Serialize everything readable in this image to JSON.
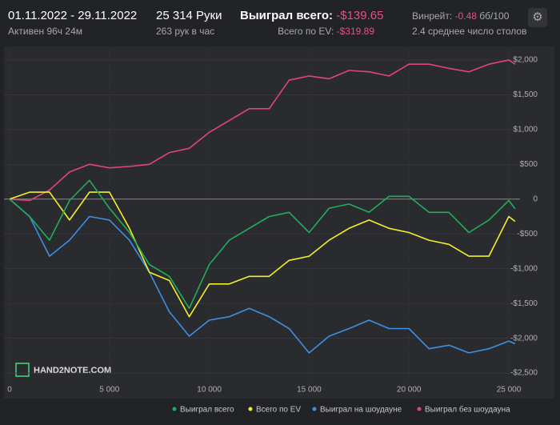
{
  "header": {
    "period": "01.11.2022 - 29.11.2022",
    "active": "Активен 96ч 24м",
    "hands": "25 314 Руки",
    "hands_per_hour": "263 рук в час",
    "won_label": "Выиграл всего:",
    "won_value": "-$139.65",
    "ev_label": "Всего по EV:",
    "ev_value": "-$319.89",
    "winrate_label": "Винрейт:",
    "winrate_value": "-0.48",
    "winrate_unit": "бб/100",
    "tables": "2.4 среднее число столов",
    "watermark": "HAND2NOTE.COM"
  },
  "chart_data": {
    "type": "line",
    "x": [
      0,
      1000,
      2000,
      3000,
      4000,
      5000,
      6000,
      7000,
      8000,
      9000,
      10000,
      11000,
      12000,
      13000,
      14000,
      15000,
      16000,
      17000,
      18000,
      19000,
      20000,
      21000,
      22000,
      23000,
      24000,
      25000,
      25314
    ],
    "series": [
      {
        "name": "Выиграл всего",
        "color": "#1fae5c",
        "values": [
          0,
          -250,
          -590,
          -20,
          270,
          -130,
          -480,
          -940,
          -1110,
          -1570,
          -940,
          -590,
          -420,
          -250,
          -190,
          -480,
          -130,
          -70,
          -190,
          40,
          40,
          -190,
          -190,
          -480,
          -300,
          -20,
          -139.65
        ]
      },
      {
        "name": "Всего по EV",
        "color": "#f2f02a",
        "values": [
          0,
          100,
          100,
          -300,
          100,
          100,
          -420,
          -1050,
          -1170,
          -1690,
          -1220,
          -1220,
          -1110,
          -1110,
          -880,
          -820,
          -590,
          -420,
          -300,
          -420,
          -480,
          -590,
          -650,
          -820,
          -820,
          -250,
          -319.89
        ]
      },
      {
        "name": "Выиграл на шоудауне",
        "color": "#3d8fe3",
        "values": [
          0,
          -250,
          -820,
          -590,
          -250,
          -300,
          -590,
          -1050,
          -1620,
          -1970,
          -1740,
          -1690,
          -1570,
          -1690,
          -1860,
          -2210,
          -1970,
          -1860,
          -1740,
          -1860,
          -1860,
          -2150,
          -2100,
          -2210,
          -2150,
          -2040,
          -2080
        ]
      },
      {
        "name": "Выиграл без шоудауна",
        "color": "#e0457a",
        "values": [
          0,
          -20,
          130,
          390,
          500,
          450,
          470,
          500,
          670,
          730,
          960,
          1130,
          1300,
          1300,
          1710,
          1770,
          1730,
          1850,
          1830,
          1770,
          1940,
          1940,
          1880,
          1830,
          1940,
          2000,
          1940
        ]
      }
    ],
    "xlim": [
      0,
      25360
    ],
    "xticks": [
      0,
      {
        "value": 5000,
        "label": "5 000"
      },
      {
        "value": 10000,
        "label": "10 000"
      },
      {
        "value": 15000,
        "label": "15 000"
      },
      {
        "value": 20000,
        "label": "20 000"
      },
      {
        "value": 25000,
        "label": "25 000"
      }
    ],
    "ylim": [
      -2660,
      2172
    ],
    "yticks": [
      {
        "value": -2500,
        "label": "-$2,500"
      },
      {
        "value": -2000,
        "label": "-$2,000"
      },
      {
        "value": -1500,
        "label": "-$1,500"
      },
      {
        "value": -1000,
        "label": "-$1,000"
      },
      {
        "value": -500,
        "label": "-$500"
      },
      0,
      {
        "value": 500,
        "label": "$500"
      },
      {
        "value": 1000,
        "label": "$1,000"
      },
      {
        "value": 1500,
        "label": "$1,500"
      },
      {
        "value": 2000,
        "label": "$2,000"
      }
    ],
    "grid": true
  }
}
